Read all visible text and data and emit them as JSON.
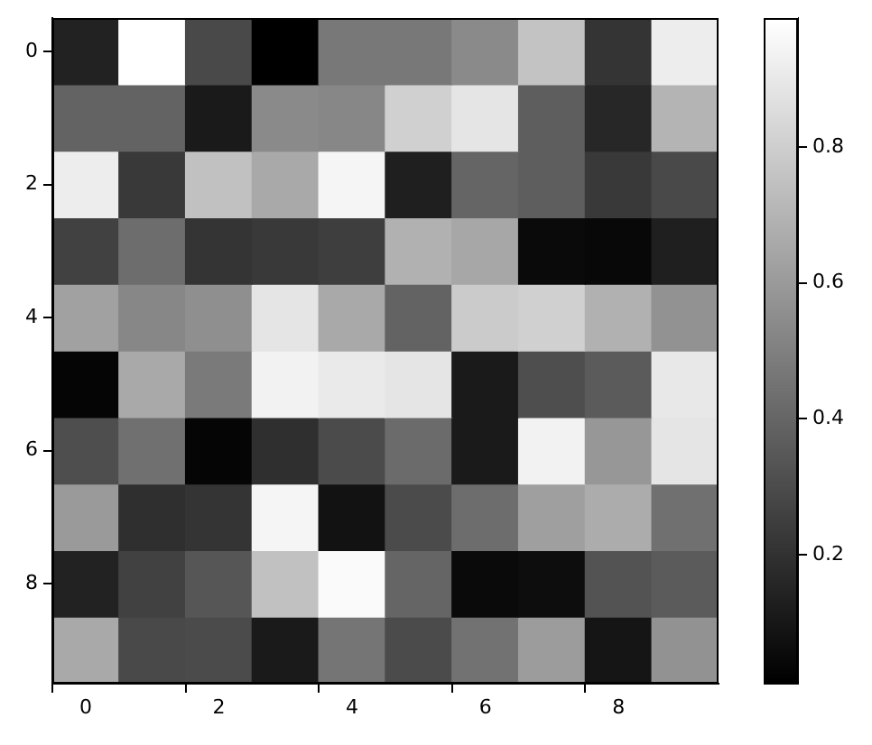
{
  "chart_data": {
    "type": "heatmap",
    "categories": [
      "0",
      null,
      "2",
      null,
      "4",
      null,
      "6",
      null,
      "8",
      null
    ],
    "y_categories": [
      "0",
      null,
      "2",
      null,
      "4",
      null,
      "6",
      null,
      "8",
      null
    ],
    "cells": [
      [
        0.14,
        0.99,
        0.29,
        0.01,
        0.47,
        0.47,
        0.54,
        0.76,
        0.21,
        0.92
      ],
      [
        0.39,
        0.39,
        0.11,
        0.54,
        0.53,
        0.81,
        0.89,
        0.37,
        0.16,
        0.7
      ],
      [
        0.92,
        0.23,
        0.75,
        0.66,
        0.95,
        0.13,
        0.4,
        0.37,
        0.23,
        0.29
      ],
      [
        0.26,
        0.43,
        0.21,
        0.23,
        0.25,
        0.69,
        0.65,
        0.05,
        0.04,
        0.13
      ],
      [
        0.63,
        0.53,
        0.56,
        0.89,
        0.66,
        0.39,
        0.79,
        0.81,
        0.69,
        0.57
      ],
      [
        0.03,
        0.66,
        0.48,
        0.94,
        0.91,
        0.89,
        0.11,
        0.31,
        0.36,
        0.9
      ],
      [
        0.31,
        0.44,
        0.03,
        0.19,
        0.3,
        0.42,
        0.11,
        0.94,
        0.59,
        0.89
      ],
      [
        0.6,
        0.19,
        0.21,
        0.95,
        0.08,
        0.3,
        0.43,
        0.62,
        0.67,
        0.44
      ],
      [
        0.14,
        0.26,
        0.34,
        0.75,
        0.97,
        0.4,
        0.05,
        0.06,
        0.33,
        0.36
      ],
      [
        0.66,
        0.29,
        0.3,
        0.11,
        0.46,
        0.3,
        0.45,
        0.61,
        0.09,
        0.57
      ]
    ],
    "clim": [
      0.01,
      0.99
    ],
    "cticks": [
      0.2,
      0.4,
      0.6,
      0.8
    ]
  }
}
